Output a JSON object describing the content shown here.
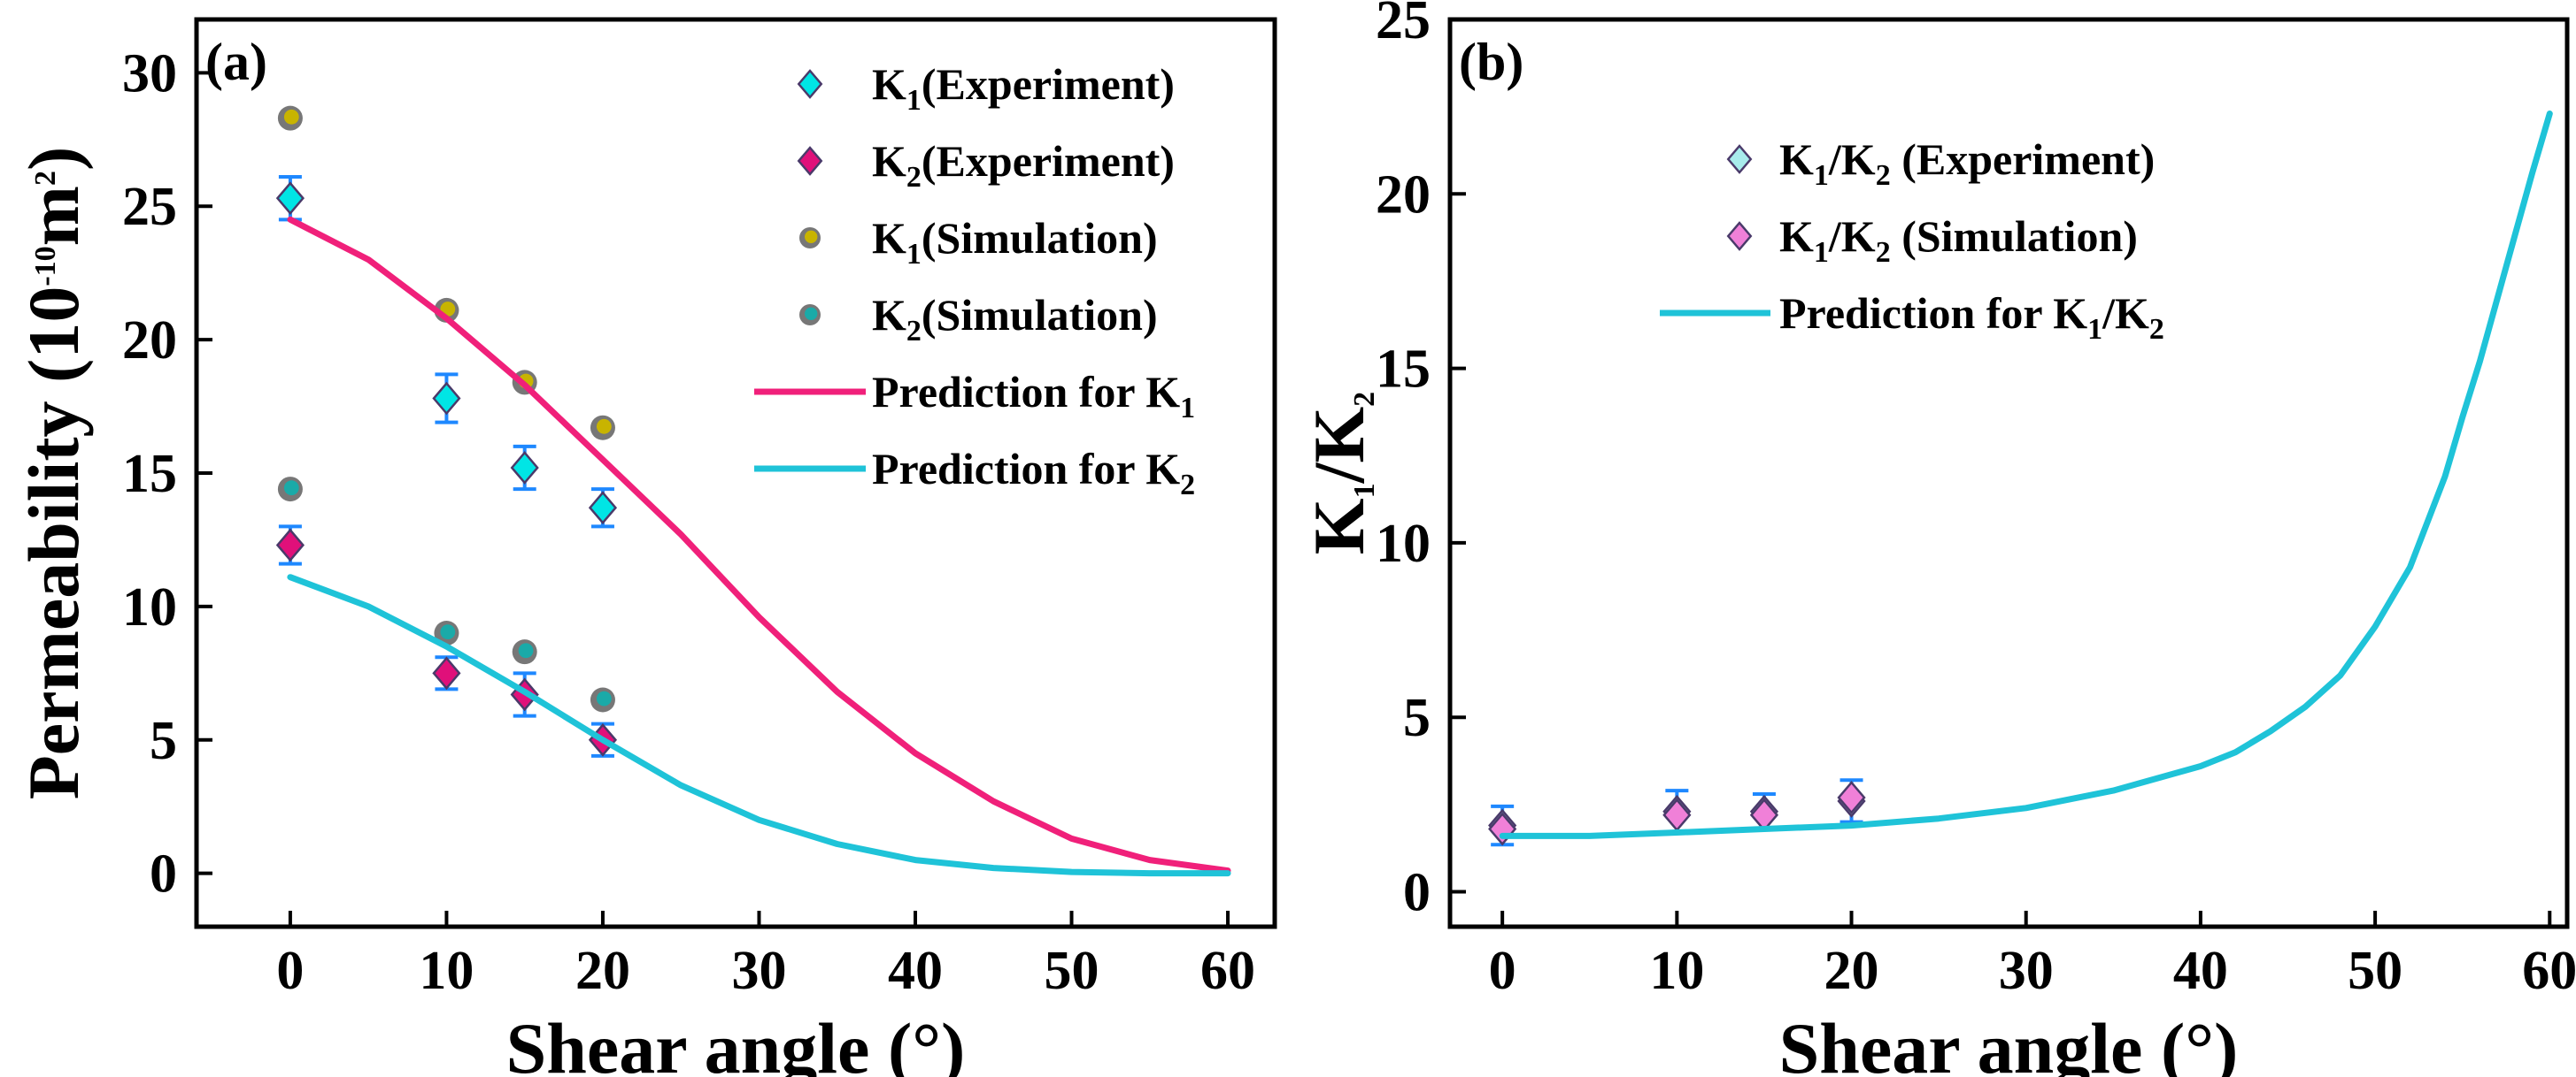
{
  "chart_data": [
    {
      "panel_label": "(a)",
      "type": "scatter",
      "xlabel": "Shear angle (°)",
      "ylabel_parts": [
        "Permeability (10",
        "-10",
        "m",
        "2",
        ")"
      ],
      "xlim": [
        -6,
        63
      ],
      "ylim": [
        -2,
        32
      ],
      "xticks": [
        0,
        10,
        20,
        30,
        40,
        50,
        60
      ],
      "yticks": [
        0,
        5,
        10,
        15,
        20,
        25,
        30
      ],
      "grid": false,
      "legend_position": "top-right",
      "series": [
        {
          "legend": [
            "K",
            "1",
            "(Experiment)"
          ],
          "marker": "diamond",
          "color": "#00e5e5",
          "x": [
            0,
            10,
            15,
            20
          ],
          "y": [
            25.3,
            17.8,
            15.2,
            13.7
          ],
          "err": [
            0.8,
            0.9,
            0.8,
            0.7
          ]
        },
        {
          "legend": [
            "K",
            "2",
            "(Experiment)"
          ],
          "marker": "diamond",
          "color": "#e0107a",
          "x": [
            0,
            10,
            15,
            20
          ],
          "y": [
            12.3,
            7.5,
            6.7,
            5.0
          ],
          "err": [
            0.7,
            0.6,
            0.8,
            0.6
          ]
        },
        {
          "legend": [
            "K",
            "1",
            "(Simulation)"
          ],
          "marker": "sphere",
          "color": "#c8b400",
          "x": [
            0,
            10,
            15,
            20
          ],
          "y": [
            28.3,
            21.1,
            18.4,
            16.7
          ]
        },
        {
          "legend": [
            "K",
            "2",
            "(Simulation)"
          ],
          "marker": "sphere",
          "color": "#1aaaa8",
          "x": [
            0,
            10,
            15,
            20
          ],
          "y": [
            14.4,
            9.0,
            8.3,
            6.5
          ]
        },
        {
          "legend": [
            "Prediction for K",
            "1",
            ""
          ],
          "marker": "line",
          "color": "#f0207a",
          "x": [
            0,
            5,
            10,
            15,
            20,
            25,
            30,
            35,
            40,
            45,
            50,
            55,
            60
          ],
          "y": [
            24.5,
            23.0,
            20.8,
            18.3,
            15.5,
            12.7,
            9.6,
            6.8,
            4.5,
            2.7,
            1.3,
            0.5,
            0.1
          ]
        },
        {
          "legend": [
            "Prediction for K",
            "2",
            ""
          ],
          "marker": "line",
          "color": "#1fc3d8",
          "x": [
            0,
            5,
            10,
            15,
            20,
            25,
            30,
            35,
            40,
            45,
            50,
            55,
            60
          ],
          "y": [
            11.1,
            10.0,
            8.5,
            6.8,
            5.0,
            3.3,
            2.0,
            1.1,
            0.5,
            0.2,
            0.05,
            0.0,
            0.0
          ]
        }
      ]
    },
    {
      "panel_label": "(b)",
      "type": "scatter",
      "xlabel": "Shear angle (°)",
      "ylabel_parts": [
        "K",
        "1",
        "/K",
        "2"
      ],
      "xlim": [
        -3,
        61
      ],
      "ylim": [
        -1,
        25
      ],
      "xticks": [
        0,
        10,
        20,
        30,
        40,
        50,
        60
      ],
      "yticks": [
        0,
        5,
        10,
        15,
        20,
        25
      ],
      "grid": false,
      "legend_position": "top-center",
      "series": [
        {
          "legend": [
            "K",
            "1",
            "/K",
            "2",
            " (Experiment)"
          ],
          "marker": "diamond",
          "color": "#a8ecec",
          "x": [
            0,
            10,
            15,
            20
          ],
          "y": [
            1.9,
            2.3,
            2.3,
            2.6
          ],
          "err": [
            0.55,
            0.6,
            0.5,
            0.6
          ]
        },
        {
          "legend": [
            "K",
            "1",
            "/K",
            "2",
            " (Simulation)"
          ],
          "marker": "diamond",
          "color": "#f080d8",
          "x": [
            0,
            10,
            15,
            20
          ],
          "y": [
            1.8,
            2.2,
            2.2,
            2.7
          ]
        },
        {
          "legend": [
            "Prediction for K",
            "1",
            "/K",
            "2",
            ""
          ],
          "marker": "line",
          "color": "#1fc3d8",
          "x": [
            0,
            5,
            10,
            15,
            20,
            25,
            30,
            35,
            40,
            42,
            44,
            46,
            48,
            50,
            52,
            54,
            55,
            56,
            57,
            58,
            59,
            60
          ],
          "y": [
            1.6,
            1.6,
            1.7,
            1.8,
            1.9,
            2.1,
            2.4,
            2.9,
            3.6,
            4.0,
            4.6,
            5.3,
            6.2,
            7.6,
            9.3,
            11.9,
            13.6,
            15.2,
            17.0,
            18.8,
            20.6,
            22.3
          ]
        }
      ]
    }
  ]
}
